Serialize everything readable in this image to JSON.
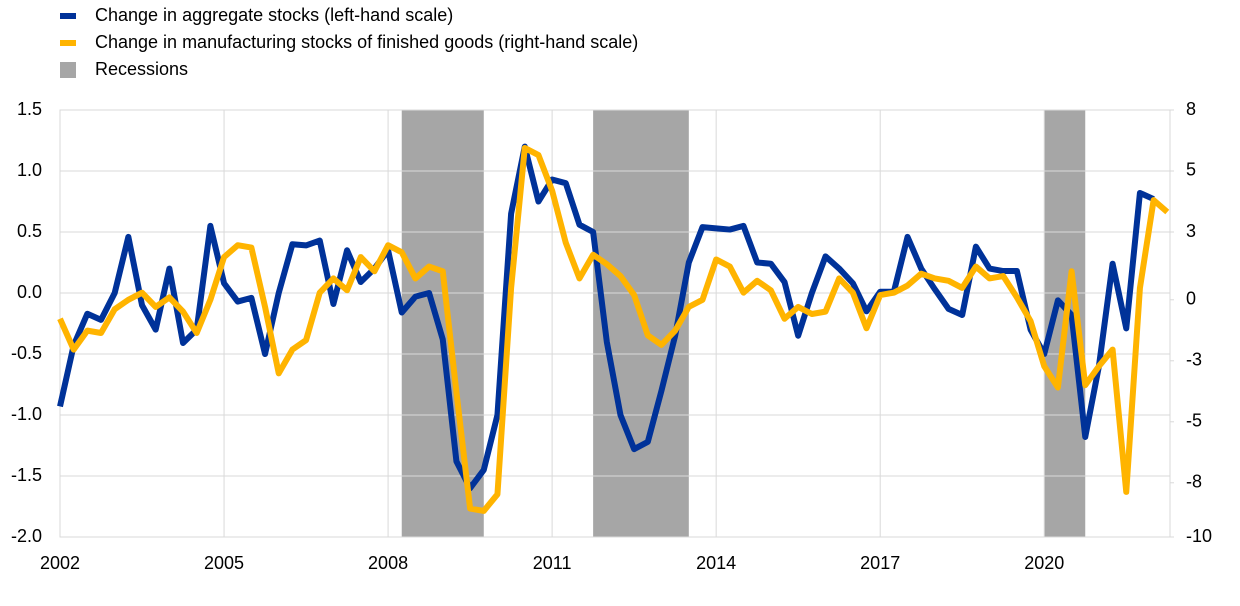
{
  "chart_data": {
    "type": "line",
    "x": [
      2002,
      2002.25,
      2002.5,
      2002.75,
      2003,
      2003.25,
      2003.5,
      2003.75,
      2004,
      2004.25,
      2004.5,
      2004.75,
      2005,
      2005.25,
      2005.5,
      2005.75,
      2006,
      2006.25,
      2006.5,
      2006.75,
      2007,
      2007.25,
      2007.5,
      2007.75,
      2008,
      2008.25,
      2008.5,
      2008.75,
      2009,
      2009.25,
      2009.5,
      2009.75,
      2010,
      2010.25,
      2010.5,
      2010.75,
      2011,
      2011.25,
      2011.5,
      2011.75,
      2012,
      2012.25,
      2012.5,
      2012.75,
      2013,
      2013.25,
      2013.5,
      2013.75,
      2014,
      2014.25,
      2014.5,
      2014.75,
      2015,
      2015.25,
      2015.5,
      2015.75,
      2016,
      2016.25,
      2016.5,
      2016.75,
      2017,
      2017.25,
      2017.5,
      2017.75,
      2018,
      2018.25,
      2018.5,
      2018.75,
      2019,
      2019.25,
      2019.5,
      2019.75,
      2020,
      2020.25,
      2020.5,
      2020.75,
      2021,
      2021.25,
      2021.5,
      2021.75,
      2022,
      2022.25
    ],
    "series": [
      {
        "name": "Change in aggregate stocks (left-hand scale)",
        "color": "#003299",
        "axis": "y",
        "values": [
          -0.93,
          -0.43,
          -0.17,
          -0.22,
          0.0,
          0.46,
          -0.1,
          -0.3,
          0.2,
          -0.41,
          -0.3,
          0.55,
          0.08,
          -0.07,
          -0.04,
          -0.5,
          0.0,
          0.4,
          0.39,
          0.43,
          -0.09,
          0.35,
          0.09,
          0.2,
          0.35,
          -0.16,
          -0.03,
          0.0,
          -0.38,
          -1.38,
          -1.6,
          -1.45,
          -1.0,
          0.65,
          1.2,
          0.75,
          0.93,
          0.9,
          0.56,
          0.5,
          -0.4,
          -1.0,
          -1.28,
          -1.22,
          -0.8,
          -0.35,
          0.25,
          0.54,
          0.53,
          0.52,
          0.55,
          0.25,
          0.24,
          0.09,
          -0.35,
          0.0,
          0.3,
          0.2,
          0.08,
          -0.15,
          0.01,
          0.01,
          0.46,
          0.2,
          0.03,
          -0.13,
          -0.18,
          0.38,
          0.2,
          0.18,
          0.18,
          -0.3,
          -0.5,
          -0.06,
          -0.18,
          -1.18,
          -0.6,
          0.24,
          -0.29,
          0.82,
          0.77,
          null
        ]
      },
      {
        "name": "Change in manufacturing stocks of finished goods (right-hand scale)",
        "color": "#ffb400",
        "axis": "y2",
        "values": [
          -0.8,
          -2.1,
          -1.3,
          -1.4,
          -0.4,
          0.0,
          0.3,
          -0.3,
          0.1,
          -0.5,
          -1.4,
          0.0,
          1.8,
          2.3,
          2.2,
          -0.3,
          -3.1,
          -2.1,
          -1.7,
          0.3,
          0.9,
          0.4,
          1.8,
          1.2,
          2.3,
          2.0,
          0.9,
          1.4,
          1.2,
          -3.9,
          -8.8,
          -8.9,
          -8.2,
          0.5,
          6.4,
          6.1,
          4.6,
          2.4,
          0.9,
          1.9,
          1.5,
          1.0,
          0.2,
          -1.5,
          -1.9,
          -1.3,
          -0.3,
          0.0,
          1.7,
          1.4,
          0.3,
          0.8,
          0.4,
          -0.8,
          -0.3,
          -0.6,
          -0.5,
          0.9,
          0.3,
          -1.2,
          0.2,
          0.3,
          0.6,
          1.1,
          0.9,
          0.8,
          0.5,
          1.4,
          0.9,
          1.0,
          0.1,
          -0.9,
          -2.8,
          -3.7,
          1.2,
          -3.6,
          -2.8,
          -2.1,
          -8.1,
          0.5,
          4.2,
          3.7
        ]
      }
    ],
    "recessions": {
      "name": "Recessions",
      "color": "#a6a6a6",
      "spans": [
        [
          2008.25,
          2009.75
        ],
        [
          2011.75,
          2013.5
        ],
        [
          2020.0,
          2020.75
        ]
      ]
    },
    "xlim": [
      2002,
      2022.3
    ],
    "xticks": [
      2002,
      2005,
      2008,
      2011,
      2014,
      2017,
      2020
    ],
    "ylim": [
      -2,
      1.5
    ],
    "yticks": [
      1.5,
      {
        "value": 1,
        "label": "1.0"
      },
      0.5,
      {
        "value": 0,
        "label": "0.0"
      },
      -0.5,
      {
        "value": -1,
        "label": "-1.0"
      },
      -1.5,
      {
        "value": -2,
        "label": "-2.0"
      }
    ],
    "y2lim": [
      -10,
      8
    ],
    "y2ticks": [
      8,
      {
        "value": 5.4286,
        "label": "5"
      },
      {
        "value": 2.8571,
        "label": "3"
      },
      0,
      {
        "value": -2.5714,
        "label": "-3"
      },
      {
        "value": -5.1429,
        "label": "-5"
      },
      {
        "value": -7.7143,
        "label": "-8"
      },
      -10
    ],
    "grid": true
  }
}
